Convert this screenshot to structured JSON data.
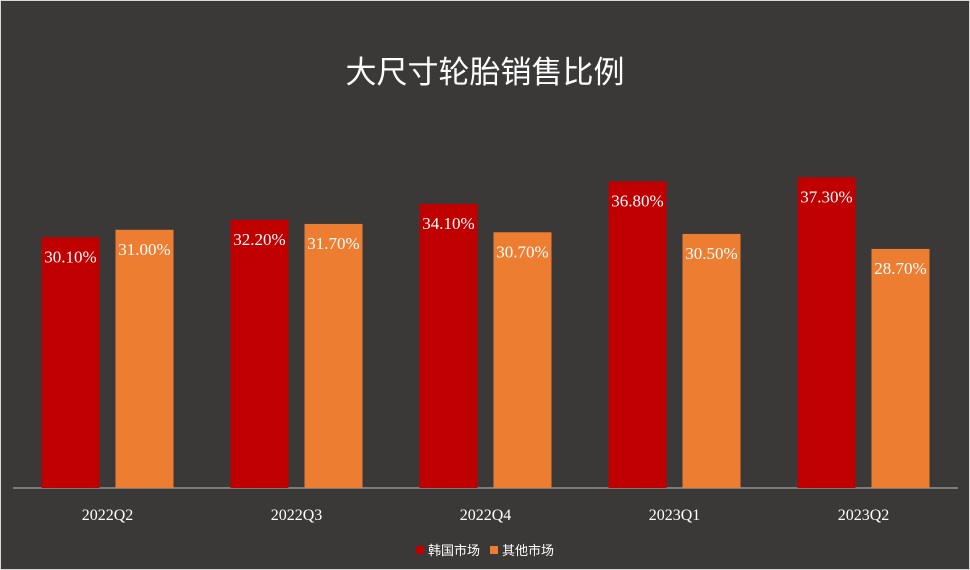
{
  "chart_data": {
    "type": "bar",
    "title": "大尺寸轮胎销售比例",
    "categories": [
      "2022Q2",
      "2022Q3",
      "2022Q4",
      "2023Q1",
      "2023Q2"
    ],
    "series": [
      {
        "name": "韩国市场",
        "color": "#c00000",
        "values": [
          30.1,
          32.2,
          34.1,
          36.8,
          37.3
        ],
        "labels": [
          "30.10%",
          "32.20%",
          "34.10%",
          "36.80%",
          "37.30%"
        ]
      },
      {
        "name": "其他市场",
        "color": "#ed7d31",
        "values": [
          31.0,
          31.7,
          30.7,
          30.5,
          28.7
        ],
        "labels": [
          "31.00%",
          "31.70%",
          "30.70%",
          "30.50%",
          "28.70%"
        ]
      }
    ],
    "xlabel": "",
    "ylabel": "",
    "ylim": [
      0,
      40
    ],
    "grid": false,
    "legend": "bottom"
  },
  "colors": {
    "background": "#3a3938",
    "axis": "#bfbfbf",
    "text": "#ffffff"
  }
}
